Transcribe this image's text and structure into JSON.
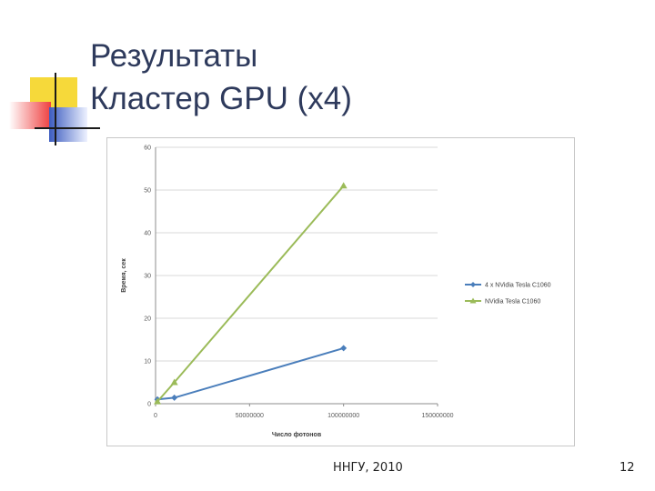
{
  "slide": {
    "title_line1": "Результаты",
    "title_line2": "Кластер GPU (x4)",
    "footer_center": "ННГУ, 2010",
    "page_number": "12"
  },
  "colors": {
    "title": "#2e3a5c",
    "deco_yellow": "#f6d93a",
    "deco_red": "#ef3f3f",
    "deco_blue": "#3c5cc0",
    "series_blue": "#4a7ebb",
    "series_green": "#9bbb59",
    "grid": "#d9d9d9"
  },
  "chart_data": {
    "type": "line",
    "title": "",
    "xlabel": "Число фотонов",
    "ylabel": "Время, сек",
    "xlim": [
      0,
      150000000
    ],
    "ylim": [
      0,
      60
    ],
    "x_ticks": [
      0,
      50000000,
      100000000,
      150000000
    ],
    "x_tick_labels": [
      "0",
      "50000000",
      "100000000",
      "150000000"
    ],
    "y_ticks": [
      0,
      10,
      20,
      30,
      40,
      50,
      60
    ],
    "y_tick_labels": [
      "0",
      "10",
      "20",
      "30",
      "40",
      "50",
      "60"
    ],
    "grid": "horizontal",
    "legend_position": "right",
    "series": [
      {
        "name": "4 x NVidia Tesla C1060",
        "color": "#4a7ebb",
        "marker": "diamond",
        "x": [
          1000000,
          10000000,
          100000000
        ],
        "y": [
          1,
          1.4,
          13
        ]
      },
      {
        "name": "NVidia Tesla C1060",
        "color": "#9bbb59",
        "marker": "triangle",
        "x": [
          1000000,
          10000000,
          100000000
        ],
        "y": [
          0.5,
          5,
          51
        ]
      }
    ]
  }
}
